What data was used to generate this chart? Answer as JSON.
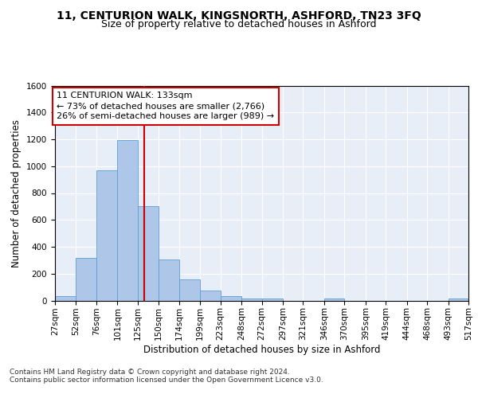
{
  "title_line1": "11, CENTURION WALK, KINGSNORTH, ASHFORD, TN23 3FQ",
  "title_line2": "Size of property relative to detached houses in Ashford",
  "xlabel": "Distribution of detached houses by size in Ashford",
  "ylabel": "Number of detached properties",
  "property_size": 133,
  "annotation_line1": "11 CENTURION WALK: 133sqm",
  "annotation_line2": "← 73% of detached houses are smaller (2,766)",
  "annotation_line3": "26% of semi-detached houses are larger (989) →",
  "bar_color": "#aec6e8",
  "bar_edge_color": "#5a9fd4",
  "vline_color": "#cc0000",
  "background_color": "#e8eef8",
  "grid_color": "#ffffff",
  "bin_edges": [
    27,
    52,
    76,
    101,
    125,
    150,
    174,
    199,
    223,
    248,
    272,
    297,
    321,
    346,
    370,
    395,
    419,
    444,
    468,
    493,
    517
  ],
  "bar_heights": [
    30,
    320,
    970,
    1195,
    700,
    305,
    155,
    75,
    30,
    15,
    15,
    0,
    0,
    15,
    0,
    0,
    0,
    0,
    0,
    15
  ],
  "ylim": [
    0,
    1600
  ],
  "yticks": [
    0,
    200,
    400,
    600,
    800,
    1000,
    1200,
    1400,
    1600
  ],
  "footnote": "Contains HM Land Registry data © Crown copyright and database right 2024.\nContains public sector information licensed under the Open Government Licence v3.0.",
  "title_fontsize": 10,
  "subtitle_fontsize": 9,
  "axis_label_fontsize": 8.5,
  "tick_fontsize": 7.5,
  "annotation_fontsize": 8,
  "footnote_fontsize": 6.5
}
